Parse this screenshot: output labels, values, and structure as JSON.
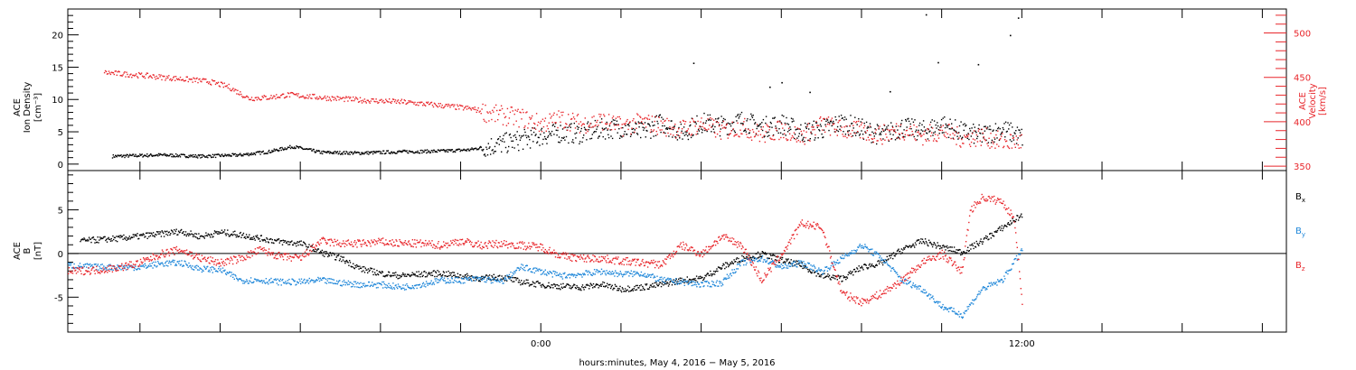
{
  "chart_data": [
    {
      "type": "scatter",
      "panel": "top",
      "ylabel_left": [
        "ACE",
        "Ion Density",
        "[cm⁻³]"
      ],
      "ylabel_right": [
        "ACE",
        "Velocity",
        "[km/s]"
      ],
      "ylim_left": [
        -1,
        24
      ],
      "yticks_left": [
        "0",
        "5",
        "10",
        "15",
        "20"
      ],
      "ylim_right": [
        345,
        527
      ],
      "yticks_right": [
        "350",
        "400",
        "450",
        "500"
      ],
      "series": [
        {
          "color": "#000000",
          "axis": "left",
          "points": [
            [
              -10.7,
              1.3
            ],
            [
              -9.5,
              1.5
            ],
            [
              -8.5,
              1.3
            ],
            [
              -7.5,
              1.5
            ],
            [
              -6.8,
              2.0
            ],
            [
              -6.2,
              2.8
            ],
            [
              -5.5,
              1.9
            ],
            [
              -4.5,
              1.8
            ],
            [
              -3.5,
              2.0
            ],
            [
              -2.5,
              2.1
            ],
            [
              -1.8,
              2.3
            ],
            [
              -1.0,
              3.2
            ],
            [
              -0.5,
              3.8
            ],
            [
              0.0,
              4.5
            ],
            [
              0.5,
              5.0
            ],
            [
              1.0,
              4.8
            ],
            [
              1.5,
              5.5
            ],
            [
              2.0,
              5.7
            ],
            [
              2.5,
              5.0
            ],
            [
              3.0,
              6.5
            ],
            [
              3.5,
              5.0
            ],
            [
              4.0,
              6.5
            ],
            [
              4.5,
              6.0
            ],
            [
              5.0,
              6.8
            ],
            [
              5.5,
              5.8
            ],
            [
              6.0,
              6.3
            ],
            [
              6.5,
              5.0
            ],
            [
              7.0,
              5.5
            ],
            [
              7.5,
              6.5
            ],
            [
              8.0,
              5.5
            ],
            [
              8.5,
              4.5
            ],
            [
              9.0,
              5.8
            ],
            [
              9.5,
              5.2
            ],
            [
              10.0,
              6.2
            ],
            [
              10.5,
              5.0
            ],
            [
              11.0,
              4.5
            ],
            [
              11.5,
              5.5
            ],
            [
              12.0,
              4.2
            ]
          ],
          "spikes": [
            [
              3.8,
              15.7
            ],
            [
              6.0,
              12.7
            ],
            [
              9.6,
              23.2
            ],
            [
              9.9,
              15.8
            ],
            [
              10.9,
              15.5
            ],
            [
              11.7,
              20.0
            ],
            [
              11.9,
              22.7
            ],
            [
              6.7,
              11.2
            ],
            [
              8.7,
              11.3
            ],
            [
              5.7,
              12.0
            ]
          ]
        },
        {
          "color": "#e8262b",
          "axis": "right",
          "points": [
            [
              -10.9,
              456
            ],
            [
              -10.0,
              453
            ],
            [
              -9.0,
              449
            ],
            [
              -8.3,
              446
            ],
            [
              -7.8,
              440
            ],
            [
              -7.3,
              427
            ],
            [
              -6.8,
              428
            ],
            [
              -6.3,
              431
            ],
            [
              -5.5,
              428
            ],
            [
              -4.5,
              425
            ],
            [
              -3.5,
              423
            ],
            [
              -2.5,
              419
            ],
            [
              -1.7,
              415
            ],
            [
              -1.2,
              409
            ],
            [
              -0.5,
              405
            ],
            [
              0.0,
              398
            ],
            [
              0.5,
              404
            ],
            [
              1.0,
              398
            ],
            [
              1.5,
              402
            ],
            [
              2.0,
              395
            ],
            [
              2.5,
              400
            ],
            [
              3.0,
              396
            ],
            [
              3.5,
              392
            ],
            [
              4.0,
              398
            ],
            [
              4.5,
              390
            ],
            [
              5.0,
              395
            ],
            [
              5.5,
              386
            ],
            [
              6.0,
              392
            ],
            [
              6.5,
              384
            ],
            [
              7.0,
              398
            ],
            [
              7.5,
              392
            ],
            [
              8.0,
              390
            ],
            [
              8.5,
              386
            ],
            [
              9.0,
              392
            ],
            [
              9.5,
              385
            ],
            [
              10.0,
              390
            ],
            [
              10.5,
              382
            ],
            [
              11.0,
              384
            ],
            [
              11.5,
              378
            ],
            [
              12.0,
              378
            ]
          ]
        }
      ]
    },
    {
      "type": "scatter",
      "panel": "bottom",
      "ylabel_left": [
        "ACE",
        "B",
        "[nT]"
      ],
      "ylim": [
        -9,
        9.5
      ],
      "yticks": [
        "-5",
        "0",
        "5"
      ],
      "zero_line": true,
      "legend_position": "right",
      "legend": [
        {
          "label": "B",
          "sub": "x",
          "color": "#000000"
        },
        {
          "label": "B",
          "sub": "y",
          "color": "#1f87d9"
        },
        {
          "label": "B",
          "sub": "z",
          "color": "#e8262b"
        }
      ],
      "series": [
        {
          "name": "Bx",
          "color": "#000000",
          "points": [
            [
              -11.5,
              1.5
            ],
            [
              -10.5,
              1.8
            ],
            [
              -9.5,
              2.3
            ],
            [
              -9.0,
              2.6
            ],
            [
              -8.5,
              2.0
            ],
            [
              -8.0,
              2.5
            ],
            [
              -7.5,
              2.2
            ],
            [
              -7.0,
              1.8
            ],
            [
              -6.5,
              1.4
            ],
            [
              -6.0,
              1.2
            ],
            [
              -5.5,
              0.2
            ],
            [
              -5.0,
              -0.5
            ],
            [
              -4.5,
              -1.7
            ],
            [
              -4.0,
              -2.2
            ],
            [
              -3.5,
              -2.5
            ],
            [
              -3.0,
              -2.3
            ],
            [
              -2.5,
              -2.2
            ],
            [
              -2.0,
              -2.5
            ],
            [
              -1.5,
              -2.8
            ],
            [
              -1.0,
              -2.6
            ],
            [
              -0.5,
              -3.2
            ],
            [
              0.0,
              -3.5
            ],
            [
              0.5,
              -3.7
            ],
            [
              1.0,
              -3.8
            ],
            [
              1.5,
              -3.5
            ],
            [
              2.0,
              -4.0
            ],
            [
              2.5,
              -3.8
            ],
            [
              3.0,
              -3.5
            ],
            [
              3.5,
              -3.0
            ],
            [
              4.0,
              -2.8
            ],
            [
              4.5,
              -1.5
            ],
            [
              5.0,
              -0.5
            ],
            [
              5.5,
              0.0
            ],
            [
              6.0,
              -0.7
            ],
            [
              6.5,
              -1.3
            ],
            [
              7.0,
              -2.5
            ],
            [
              7.5,
              -2.8
            ],
            [
              8.0,
              -1.5
            ],
            [
              8.5,
              -1.0
            ],
            [
              9.0,
              0.5
            ],
            [
              9.5,
              1.5
            ],
            [
              10.0,
              0.8
            ],
            [
              10.5,
              0.2
            ],
            [
              11.0,
              1.5
            ],
            [
              11.5,
              3.0
            ],
            [
              12.0,
              4.5
            ]
          ]
        },
        {
          "name": "By",
          "color": "#1f87d9",
          "points": [
            [
              -11.8,
              -1.3
            ],
            [
              -11.0,
              -1.5
            ],
            [
              -10.0,
              -1.5
            ],
            [
              -9.5,
              -1.1
            ],
            [
              -9.0,
              -1.0
            ],
            [
              -8.5,
              -1.7
            ],
            [
              -8.0,
              -1.8
            ],
            [
              -7.5,
              -3.0
            ],
            [
              -7.0,
              -3.0
            ],
            [
              -6.5,
              -3.2
            ],
            [
              -6.0,
              -3.2
            ],
            [
              -5.5,
              -3.0
            ],
            [
              -5.0,
              -3.3
            ],
            [
              -4.5,
              -3.5
            ],
            [
              -4.0,
              -3.5
            ],
            [
              -3.5,
              -3.8
            ],
            [
              -3.0,
              -3.5
            ],
            [
              -2.5,
              -3.0
            ],
            [
              -2.0,
              -3.0
            ],
            [
              -1.5,
              -2.8
            ],
            [
              -1.0,
              -3.2
            ],
            [
              -0.5,
              -1.5
            ],
            [
              0.0,
              -2.0
            ],
            [
              0.5,
              -2.5
            ],
            [
              1.0,
              -2.3
            ],
            [
              1.5,
              -2.0
            ],
            [
              2.0,
              -2.3
            ],
            [
              2.5,
              -2.2
            ],
            [
              3.0,
              -3.0
            ],
            [
              3.5,
              -3.2
            ],
            [
              4.0,
              -3.5
            ],
            [
              4.5,
              -3.3
            ],
            [
              5.0,
              -1.0
            ],
            [
              5.5,
              -0.5
            ],
            [
              6.0,
              -1.5
            ],
            [
              6.5,
              -1.0
            ],
            [
              7.0,
              -2.0
            ],
            [
              7.5,
              -0.5
            ],
            [
              8.0,
              1.0
            ],
            [
              8.5,
              -0.5
            ],
            [
              9.0,
              -3.0
            ],
            [
              9.5,
              -4.0
            ],
            [
              10.0,
              -6.0
            ],
            [
              10.5,
              -7.0
            ],
            [
              11.0,
              -4.0
            ],
            [
              11.5,
              -3.0
            ],
            [
              12.0,
              0.5
            ]
          ]
        },
        {
          "name": "Bz",
          "color": "#e8262b",
          "points": [
            [
              -11.8,
              -2.0
            ],
            [
              -11.0,
              -1.8
            ],
            [
              -10.5,
              -1.5
            ],
            [
              -10.0,
              -1.0
            ],
            [
              -9.5,
              0.0
            ],
            [
              -9.0,
              0.5
            ],
            [
              -8.5,
              -0.5
            ],
            [
              -8.0,
              -1.0
            ],
            [
              -7.5,
              -0.5
            ],
            [
              -7.0,
              0.5
            ],
            [
              -6.5,
              -0.3
            ],
            [
              -6.0,
              -0.5
            ],
            [
              -5.5,
              1.5
            ],
            [
              -5.0,
              1.2
            ],
            [
              -4.5,
              1.2
            ],
            [
              -4.0,
              1.4
            ],
            [
              -3.5,
              1.2
            ],
            [
              -3.0,
              1.2
            ],
            [
              -2.5,
              1.0
            ],
            [
              -2.0,
              1.5
            ],
            [
              -1.5,
              1.0
            ],
            [
              -1.0,
              1.2
            ],
            [
              -0.5,
              1.0
            ],
            [
              0.0,
              0.8
            ],
            [
              0.5,
              -0.2
            ],
            [
              1.0,
              -0.5
            ],
            [
              1.5,
              -0.5
            ],
            [
              2.0,
              -0.8
            ],
            [
              2.5,
              -1.0
            ],
            [
              3.0,
              -1.2
            ],
            [
              3.5,
              1.0
            ],
            [
              4.0,
              0.0
            ],
            [
              4.5,
              2.0
            ],
            [
              5.0,
              1.0
            ],
            [
              5.5,
              -3.0
            ],
            [
              6.0,
              0.0
            ],
            [
              6.5,
              3.5
            ],
            [
              7.0,
              3.0
            ],
            [
              7.5,
              -4.5
            ],
            [
              8.0,
              -5.5
            ],
            [
              8.5,
              -4.5
            ],
            [
              9.0,
              -3.0
            ],
            [
              9.5,
              -1.0
            ],
            [
              10.0,
              0.0
            ],
            [
              10.5,
              -2.0
            ],
            [
              10.7,
              5.0
            ],
            [
              11.0,
              6.5
            ],
            [
              11.5,
              6.0
            ],
            [
              11.8,
              4.0
            ],
            [
              12.0,
              -5.5
            ]
          ]
        }
      ]
    }
  ],
  "x_axis": {
    "range_hours": [
      -11.8,
      18.6
    ],
    "labeled_ticks": [
      {
        "x": 0,
        "label": "0:00"
      },
      {
        "x": 12,
        "label": "12:00"
      }
    ],
    "major_tick_step": 2,
    "title": "hours:minutes,  May  4, 2016 − May  5, 2016"
  }
}
